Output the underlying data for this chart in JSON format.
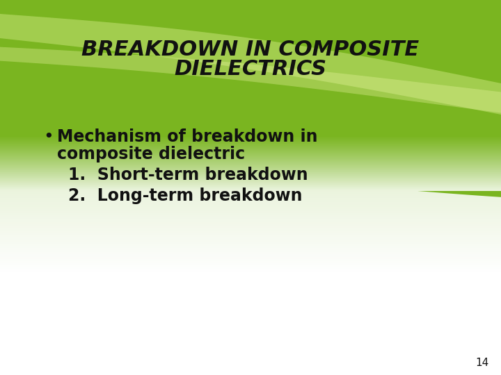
{
  "title_line1": "BREAKDOWN IN COMPOSITE",
  "title_line2": "DIELECTRICS",
  "title_fontsize": 22,
  "title_color": "#111111",
  "bullet_char": "•",
  "bullet_line1": "Mechanism of breakdown in",
  "bullet_line2": "composite dielectric",
  "item1": "1.  Short-term breakdown",
  "item2": "2.  Long-term breakdown",
  "body_fontsize": 17,
  "body_color": "#111111",
  "page_number": "14",
  "page_num_fontsize": 11,
  "green_dark": "#6db31a",
  "green_mid": "#8dc63f",
  "green_light": "#b5d96a",
  "slide_bg": "#ffffff"
}
